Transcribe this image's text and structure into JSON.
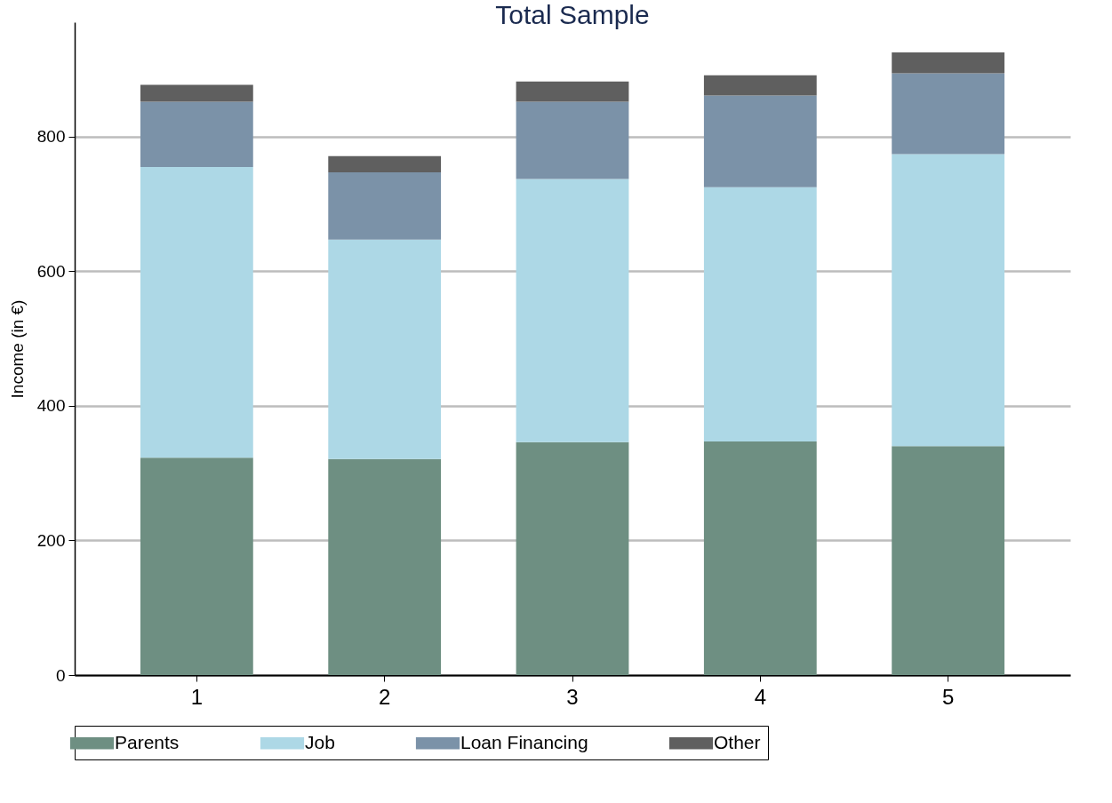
{
  "chart_data": {
    "type": "bar",
    "title": "Total Sample",
    "ylabel": "Income (in €)",
    "categories": [
      "1",
      "2",
      "3",
      "4",
      "5"
    ],
    "stacked": true,
    "series": [
      {
        "name": "Parents",
        "color": "#6e8f82",
        "values": [
          323,
          321,
          346,
          347,
          340
        ]
      },
      {
        "name": "Job",
        "color": "#add8e6",
        "values": [
          432,
          326,
          391,
          378,
          434
        ]
      },
      {
        "name": "Loan Financing",
        "color": "#7b92a8",
        "values": [
          97,
          100,
          115,
          136,
          120
        ]
      },
      {
        "name": "Other",
        "color": "#5f5f5f",
        "values": [
          25,
          24,
          30,
          30,
          31
        ]
      }
    ],
    "ylim": [
      0,
      970
    ],
    "yticks": [
      0,
      200,
      400,
      600,
      800
    ],
    "grid": "y",
    "legend": "bottom"
  }
}
